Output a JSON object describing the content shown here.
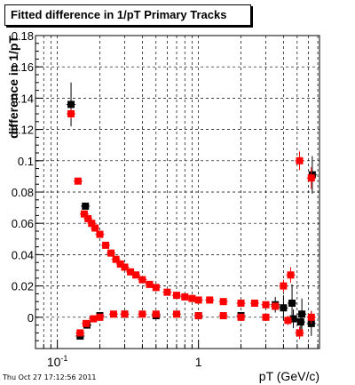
{
  "window": {
    "title": "Fitted difference in 1/pT  Primary Tracks"
  },
  "footer": {
    "timestamp": "Thu Oct 27 17:12:56 2011"
  },
  "colors": {
    "series_a": "#000000",
    "series_b": "#ff0000",
    "grid": "#000000"
  },
  "chart_data": {
    "type": "scatter",
    "title": "Fitted difference in 1/pT  Primary Tracks",
    "xlabel": "pT (GeV/c)",
    "ylabel": "difference in 1/pT",
    "xscale": "log",
    "xlim": [
      0.07,
      7.2
    ],
    "ylim": [
      -0.02,
      0.18
    ],
    "grid": true,
    "xticks": [
      {
        "value": 0.1,
        "label": "10",
        "sup": "-1"
      },
      {
        "value": 1,
        "label": "1",
        "sup": ""
      }
    ],
    "yticks": [
      0,
      0.02,
      0.04,
      0.06,
      0.08,
      0.1,
      0.12,
      0.14,
      0.16,
      0.18
    ],
    "ytick_labels": [
      "0",
      "0.02",
      "0.04",
      "0.06",
      "0.08",
      "0.1",
      "0.12",
      "0.14",
      "0.16",
      "0.18"
    ],
    "series": [
      {
        "color": "#000000",
        "points": [
          [
            0.125,
            0.136,
            0.014
          ],
          [
            0.145,
            -0.012,
            0.002
          ],
          [
            0.158,
            0.071,
            0.002
          ],
          [
            0.162,
            -0.005,
            0.001
          ],
          [
            0.2,
            0.001,
            0.001
          ],
          [
            0.3,
            0.002,
            0.001
          ],
          [
            0.5,
            0.001,
            0.001
          ],
          [
            1.0,
            0.001,
            0.001
          ],
          [
            2.0,
            0.001,
            0.001
          ],
          [
            3.5,
            0.008,
            0.005
          ],
          [
            4.0,
            0.006,
            0.008
          ],
          [
            4.6,
            0.009,
            0.012
          ],
          [
            4.7,
            -0.001,
            0.006
          ],
          [
            5.3,
            -0.003,
            0.007
          ],
          [
            5.4,
            0.002,
            0.01
          ],
          [
            6.3,
            -0.004,
            0.008
          ],
          [
            6.4,
            0.091,
            0.012
          ]
        ]
      },
      {
        "color": "#ff0000",
        "points": [
          [
            0.125,
            0.13,
            0.003
          ],
          [
            0.14,
            0.087,
            0.002
          ],
          [
            0.155,
            0.066,
            0.002
          ],
          [
            0.165,
            0.063,
            0.001
          ],
          [
            0.175,
            0.06,
            0.001
          ],
          [
            0.185,
            0.057,
            0.001
          ],
          [
            0.2,
            0.053,
            0.001
          ],
          [
            0.22,
            0.046,
            0.001
          ],
          [
            0.24,
            0.041,
            0.001
          ],
          [
            0.26,
            0.037,
            0.001
          ],
          [
            0.28,
            0.034,
            0.001
          ],
          [
            0.3,
            0.032,
            0.001
          ],
          [
            0.33,
            0.029,
            0.001
          ],
          [
            0.36,
            0.027,
            0.001
          ],
          [
            0.4,
            0.024,
            0.001
          ],
          [
            0.45,
            0.021,
            0.001
          ],
          [
            0.5,
            0.019,
            0.001
          ],
          [
            0.6,
            0.016,
            0.001
          ],
          [
            0.7,
            0.014,
            0.001
          ],
          [
            0.8,
            0.013,
            0.001
          ],
          [
            0.9,
            0.012,
            0.001
          ],
          [
            1.0,
            0.011,
            0.001
          ],
          [
            1.2,
            0.011,
            0.001
          ],
          [
            1.5,
            0.01,
            0.001
          ],
          [
            2.0,
            0.009,
            0.001
          ],
          [
            2.5,
            0.009,
            0.001
          ],
          [
            3.0,
            0.008,
            0.001
          ],
          [
            3.5,
            0.007,
            0.002
          ],
          [
            4.0,
            0.02,
            0.004
          ],
          [
            4.5,
            0.027,
            0.005
          ],
          [
            5.2,
            0.1,
            0.006
          ],
          [
            6.3,
            0.089,
            0.007
          ],
          [
            0.145,
            -0.01,
            0.001
          ],
          [
            0.16,
            -0.004,
            0.001
          ],
          [
            0.18,
            -0.001,
            0.001
          ],
          [
            0.2,
            0.0,
            0.001
          ],
          [
            0.25,
            0.002,
            0.001
          ],
          [
            0.3,
            0.002,
            0.001
          ],
          [
            0.4,
            0.002,
            0.001
          ],
          [
            0.5,
            0.002,
            0.001
          ],
          [
            0.7,
            0.002,
            0.001
          ],
          [
            1.0,
            0.001,
            0.001
          ],
          [
            1.5,
            0.001,
            0.001
          ],
          [
            2.0,
            0.0,
            0.001
          ],
          [
            3.0,
            0.0,
            0.001
          ],
          [
            4.3,
            -0.002,
            0.003
          ],
          [
            5.2,
            -0.01,
            0.004
          ],
          [
            6.3,
            0.0,
            0.004
          ]
        ]
      }
    ]
  }
}
